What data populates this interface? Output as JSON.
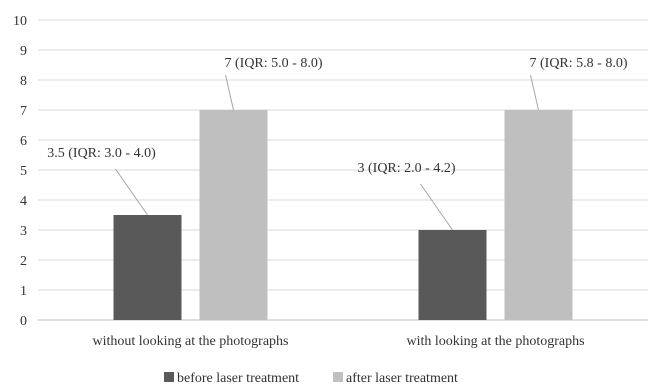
{
  "chart_data": {
    "type": "bar",
    "categories": [
      "without looking at the photographs",
      "with looking at the photographs"
    ],
    "series": [
      {
        "name": "before laser treatment",
        "values": [
          3.5,
          3
        ],
        "color": "#595959"
      },
      {
        "name": "after laser treatment",
        "values": [
          7,
          7
        ],
        "color": "#bfbfbf"
      }
    ],
    "data_labels": [
      [
        "3.5 (IQR: 3.0 - 4.0)",
        "3 (IQR: 2.0 - 4.2)"
      ],
      [
        "7 (IQR: 5.0 - 8.0)",
        "7 (IQR: 5.8 - 8.0)"
      ]
    ],
    "y_ticks": [
      "0",
      "1",
      "2",
      "3",
      "4",
      "5",
      "6",
      "7",
      "8",
      "9",
      "10"
    ],
    "ylim": [
      0,
      10
    ],
    "grid": true,
    "legend_position": "bottom",
    "title": "",
    "xlabel": "",
    "ylabel": ""
  }
}
